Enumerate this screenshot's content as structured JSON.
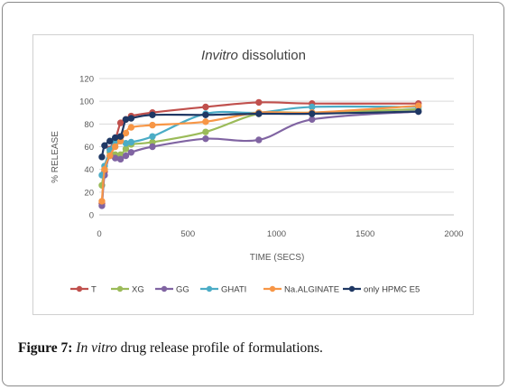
{
  "caption": {
    "label": "Figure 7:",
    "italic": "In vitro",
    "rest": " drug release profile of formulations."
  },
  "chart_data": {
    "type": "line",
    "title_italic": "Invitro",
    "title_rest": " dissolution",
    "xlabel": "TIME (SECS)",
    "ylabel": "% RELEASE",
    "xlim": [
      0,
      2000
    ],
    "ylim": [
      0,
      120
    ],
    "xticks": [
      0,
      500,
      1000,
      1500,
      2000
    ],
    "yticks": [
      0,
      20,
      40,
      60,
      80,
      100,
      120
    ],
    "grid": "horizontal",
    "legend_position": "bottom",
    "series": [
      {
        "name": "T",
        "color": "#c0504d",
        "x": [
          15,
          30,
          60,
          90,
          120,
          150,
          180,
          300,
          600,
          900,
          1200,
          1800
        ],
        "y": [
          10,
          38,
          58,
          66,
          81,
          84,
          87,
          90,
          95,
          99,
          98,
          98
        ]
      },
      {
        "name": "XG",
        "color": "#9bbb59",
        "x": [
          15,
          30,
          60,
          90,
          120,
          150,
          180,
          300,
          600,
          900,
          1200,
          1800
        ],
        "y": [
          26,
          40,
          55,
          53,
          53,
          58,
          62,
          64,
          73,
          89,
          90,
          93
        ]
      },
      {
        "name": "GG",
        "color": "#8064a2",
        "x": [
          15,
          30,
          60,
          90,
          120,
          150,
          180,
          300,
          600,
          900,
          1200,
          1800
        ],
        "y": [
          8,
          35,
          52,
          50,
          49,
          52,
          55,
          60,
          67,
          66,
          84,
          91
        ]
      },
      {
        "name": "GHATI",
        "color": "#4bacc6",
        "x": [
          15,
          30,
          60,
          90,
          120,
          150,
          180,
          300,
          600,
          900,
          1200,
          1800
        ],
        "y": [
          35,
          43,
          57,
          64,
          65,
          63,
          64,
          69,
          89,
          90,
          95,
          95
        ]
      },
      {
        "name": "Na.ALGINATE",
        "color": "#f79646",
        "x": [
          15,
          30,
          60,
          90,
          120,
          150,
          180,
          300,
          600,
          900,
          1200,
          1800
        ],
        "y": [
          12,
          40,
          52,
          60,
          65,
          72,
          77,
          79,
          82,
          90,
          90,
          96
        ]
      },
      {
        "name": "only HPMC E5",
        "color": "#1f3864",
        "x": [
          15,
          30,
          60,
          90,
          120,
          150,
          180,
          300,
          600,
          900,
          1200,
          1800
        ],
        "y": [
          51,
          61,
          65,
          68,
          69,
          84,
          85,
          88,
          88,
          89,
          89,
          91
        ]
      }
    ]
  }
}
